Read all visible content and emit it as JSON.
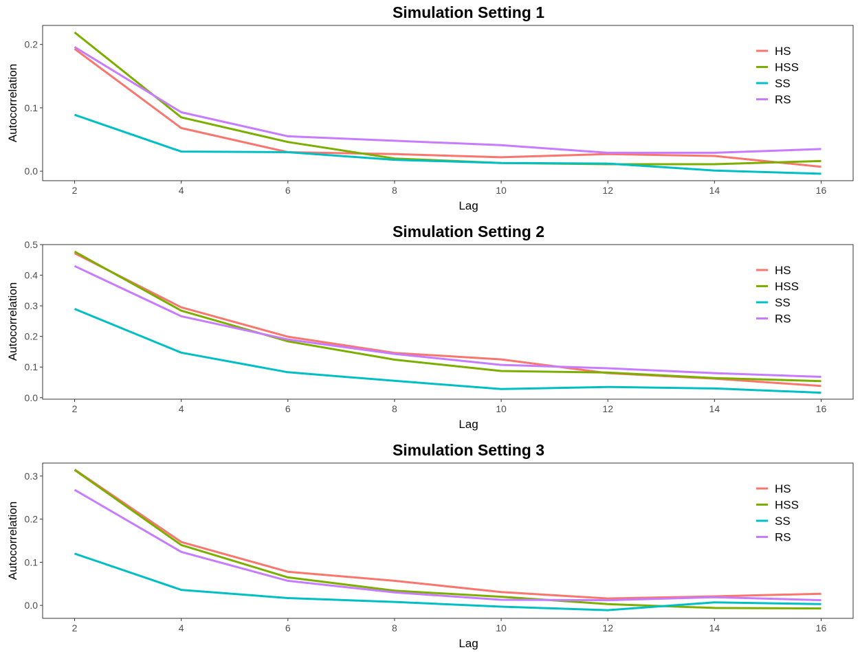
{
  "chart_data": [
    {
      "type": "line",
      "title": "Simulation Setting 1",
      "xlabel": "Lag",
      "ylabel": "Autocorrelation",
      "x": [
        2,
        4,
        6,
        8,
        10,
        12,
        14,
        16
      ],
      "xlim": [
        1.4,
        16.6
      ],
      "ylim": [
        -0.015,
        0.23
      ],
      "xticks": [
        2,
        4,
        6,
        8,
        10,
        12,
        14,
        16
      ],
      "yticks": [
        0.0,
        0.1,
        0.2
      ],
      "ytick_labels": [
        "0.0",
        "0.1",
        "0.2"
      ],
      "grid": false,
      "legend_position": "top-right",
      "series": [
        {
          "name": "HS",
          "color": "#F8766D",
          "values": [
            0.193,
            0.068,
            0.03,
            0.027,
            0.022,
            0.027,
            0.024,
            0.007
          ]
        },
        {
          "name": "HSS",
          "color": "#7CAE00",
          "values": [
            0.219,
            0.085,
            0.046,
            0.02,
            0.013,
            0.011,
            0.011,
            0.016
          ]
        },
        {
          "name": "SS",
          "color": "#00BFC4",
          "values": [
            0.089,
            0.031,
            0.03,
            0.018,
            0.013,
            0.012,
            0.001,
            -0.004
          ]
        },
        {
          "name": "RS",
          "color": "#C77CFF",
          "values": [
            0.196,
            0.093,
            0.055,
            0.048,
            0.041,
            0.029,
            0.029,
            0.035
          ]
        }
      ]
    },
    {
      "type": "line",
      "title": "Simulation Setting 2",
      "xlabel": "Lag",
      "ylabel": "Autocorrelation",
      "x": [
        2,
        4,
        6,
        8,
        10,
        12,
        14,
        16
      ],
      "xlim": [
        1.4,
        16.6
      ],
      "ylim": [
        -0.005,
        0.5
      ],
      "xticks": [
        2,
        4,
        6,
        8,
        10,
        12,
        14,
        16
      ],
      "yticks": [
        0.0,
        0.1,
        0.2,
        0.3,
        0.4,
        0.5
      ],
      "ytick_labels": [
        "0.0",
        "0.1",
        "0.2",
        "0.3",
        "0.4",
        "0.5"
      ],
      "grid": false,
      "legend_position": "top-right",
      "series": [
        {
          "name": "HS",
          "color": "#F8766D",
          "values": [
            0.472,
            0.295,
            0.199,
            0.146,
            0.125,
            0.08,
            0.062,
            0.038
          ]
        },
        {
          "name": "HSS",
          "color": "#7CAE00",
          "values": [
            0.477,
            0.284,
            0.184,
            0.124,
            0.087,
            0.082,
            0.064,
            0.054
          ]
        },
        {
          "name": "SS",
          "color": "#00BFC4",
          "values": [
            0.29,
            0.147,
            0.083,
            0.055,
            0.028,
            0.035,
            0.03,
            0.016
          ]
        },
        {
          "name": "RS",
          "color": "#C77CFF",
          "values": [
            0.43,
            0.266,
            0.19,
            0.143,
            0.107,
            0.096,
            0.08,
            0.068
          ]
        }
      ]
    },
    {
      "type": "line",
      "title": "Simulation Setting 3",
      "xlabel": "Lag",
      "ylabel": "Autocorrelation",
      "x": [
        2,
        4,
        6,
        8,
        10,
        12,
        14,
        16
      ],
      "xlim": [
        1.4,
        16.6
      ],
      "ylim": [
        -0.03,
        0.33
      ],
      "xticks": [
        2,
        4,
        6,
        8,
        10,
        12,
        14,
        16
      ],
      "yticks": [
        0.0,
        0.1,
        0.2,
        0.3
      ],
      "ytick_labels": [
        "0.0",
        "0.1",
        "0.2",
        "0.3"
      ],
      "grid": false,
      "legend_position": "top-right",
      "series": [
        {
          "name": "HS",
          "color": "#F8766D",
          "values": [
            0.315,
            0.147,
            0.078,
            0.057,
            0.031,
            0.016,
            0.021,
            0.027
          ]
        },
        {
          "name": "HSS",
          "color": "#7CAE00",
          "values": [
            0.314,
            0.14,
            0.065,
            0.034,
            0.02,
            0.003,
            -0.006,
            -0.007
          ]
        },
        {
          "name": "SS",
          "color": "#00BFC4",
          "values": [
            0.12,
            0.036,
            0.017,
            0.008,
            -0.003,
            -0.011,
            0.007,
            0.003
          ]
        },
        {
          "name": "RS",
          "color": "#C77CFF",
          "values": [
            0.268,
            0.124,
            0.057,
            0.03,
            0.013,
            0.012,
            0.019,
            0.012
          ]
        }
      ]
    }
  ]
}
